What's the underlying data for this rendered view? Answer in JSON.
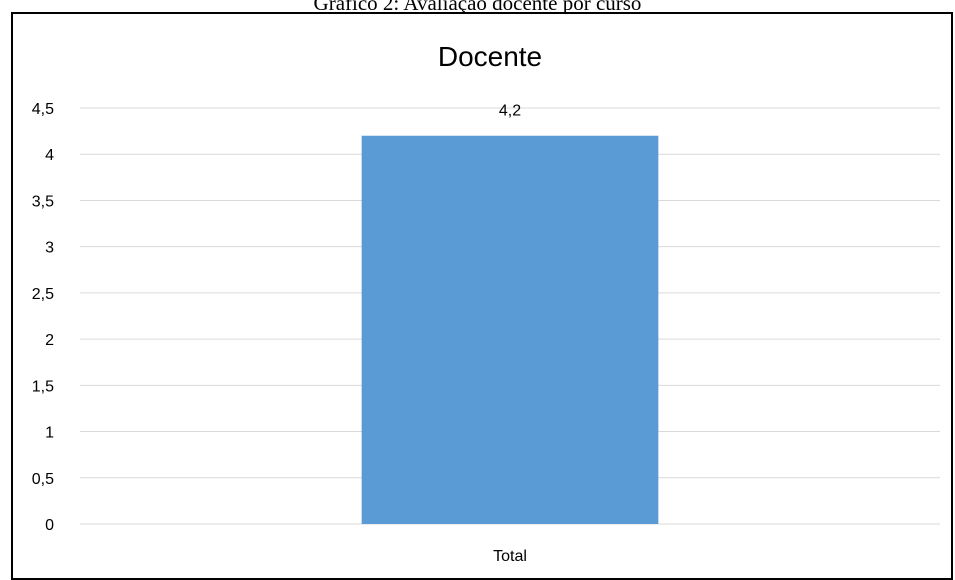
{
  "caption": "Gráfico 2: Avaliação docente por curso",
  "colors": {
    "bar": "#5B9BD5",
    "gridline": "#D9D9D9",
    "frame": "#000000"
  },
  "chart_data": {
    "type": "bar",
    "title": "Docente",
    "categories": [
      "Total"
    ],
    "values": [
      4.2
    ],
    "data_labels": [
      "4,2"
    ],
    "ylim": [
      0,
      4.5
    ],
    "yticks": [
      0,
      0.5,
      1,
      1.5,
      2,
      2.5,
      3,
      3.5,
      4,
      4.5
    ],
    "ytick_labels": [
      "0",
      "0,5",
      "1",
      "1,5",
      "2",
      "2,5",
      "3",
      "3,5",
      "4",
      "4,5"
    ],
    "xlabel": "",
    "ylabel": "",
    "grid": true,
    "legend": "none"
  }
}
